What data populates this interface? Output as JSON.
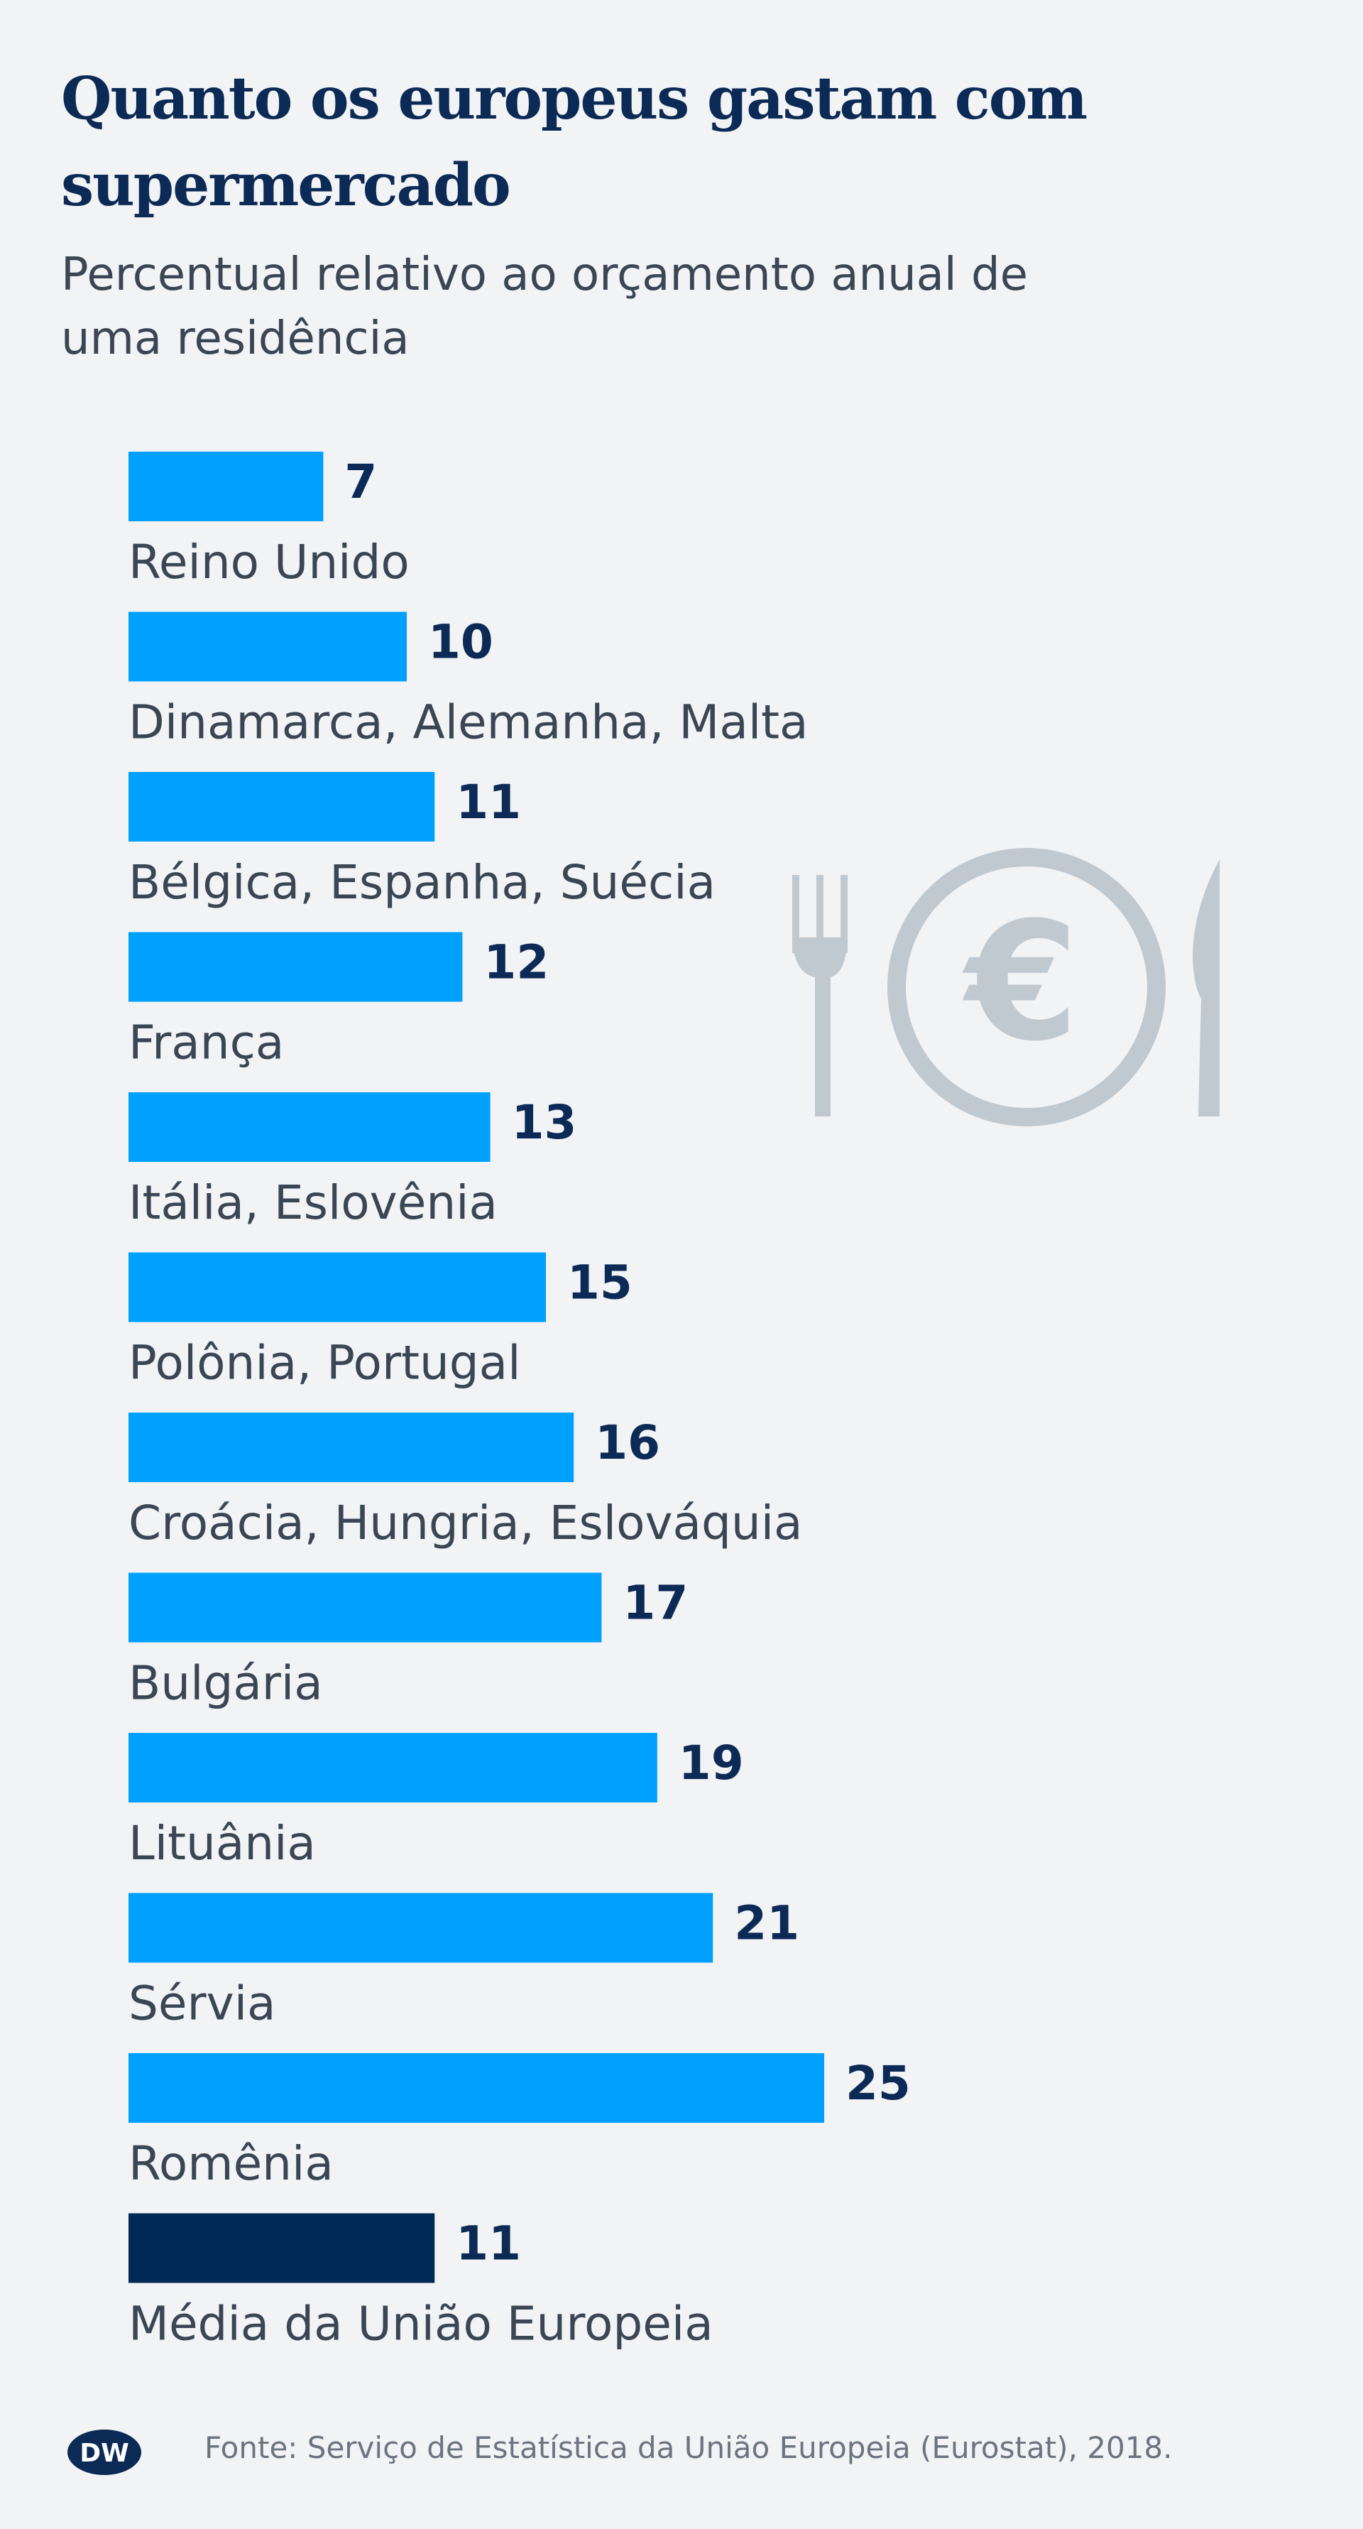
{
  "header": {
    "title": "Quanto os europeus gastam com supermercado",
    "subtitle": "Percentual relativo ao orçamento anual de uma residência"
  },
  "chart_data": {
    "type": "bar",
    "orientation": "horizontal",
    "categories": [
      "Reino Unido",
      "Dinamarca, Alemanha, Malta",
      "Bélgica, Espanha, Suécia",
      "França",
      "Itália, Eslovênia",
      "Polônia, Portugal",
      "Croácia, Hungria, Eslováquia",
      "Bulgária",
      "Lituânia",
      "Sérvia",
      "Romênia",
      "Média da União Europeia"
    ],
    "values": [
      7,
      10,
      11,
      12,
      13,
      15,
      16,
      17,
      19,
      21,
      25,
      11
    ],
    "title": "Quanto os europeus gastam com supermercado",
    "subtitle": "Percentual relativo ao orçamento anual de uma residência",
    "xlim": [
      0,
      25
    ],
    "grid": false,
    "colors": {
      "bar": "#00a0ff",
      "highlight": "#002a55",
      "value_label": "#0b2a55",
      "category_label": "#3b4654"
    },
    "highlight_index": 11
  },
  "decoration": {
    "icon": "fork-euro-knife-icon",
    "icon_color": "#c0c8d0"
  },
  "footer": {
    "logo": "DW",
    "source": "Fonte: Serviço de Estatística da União Europeia (Eurostat), 2018."
  }
}
